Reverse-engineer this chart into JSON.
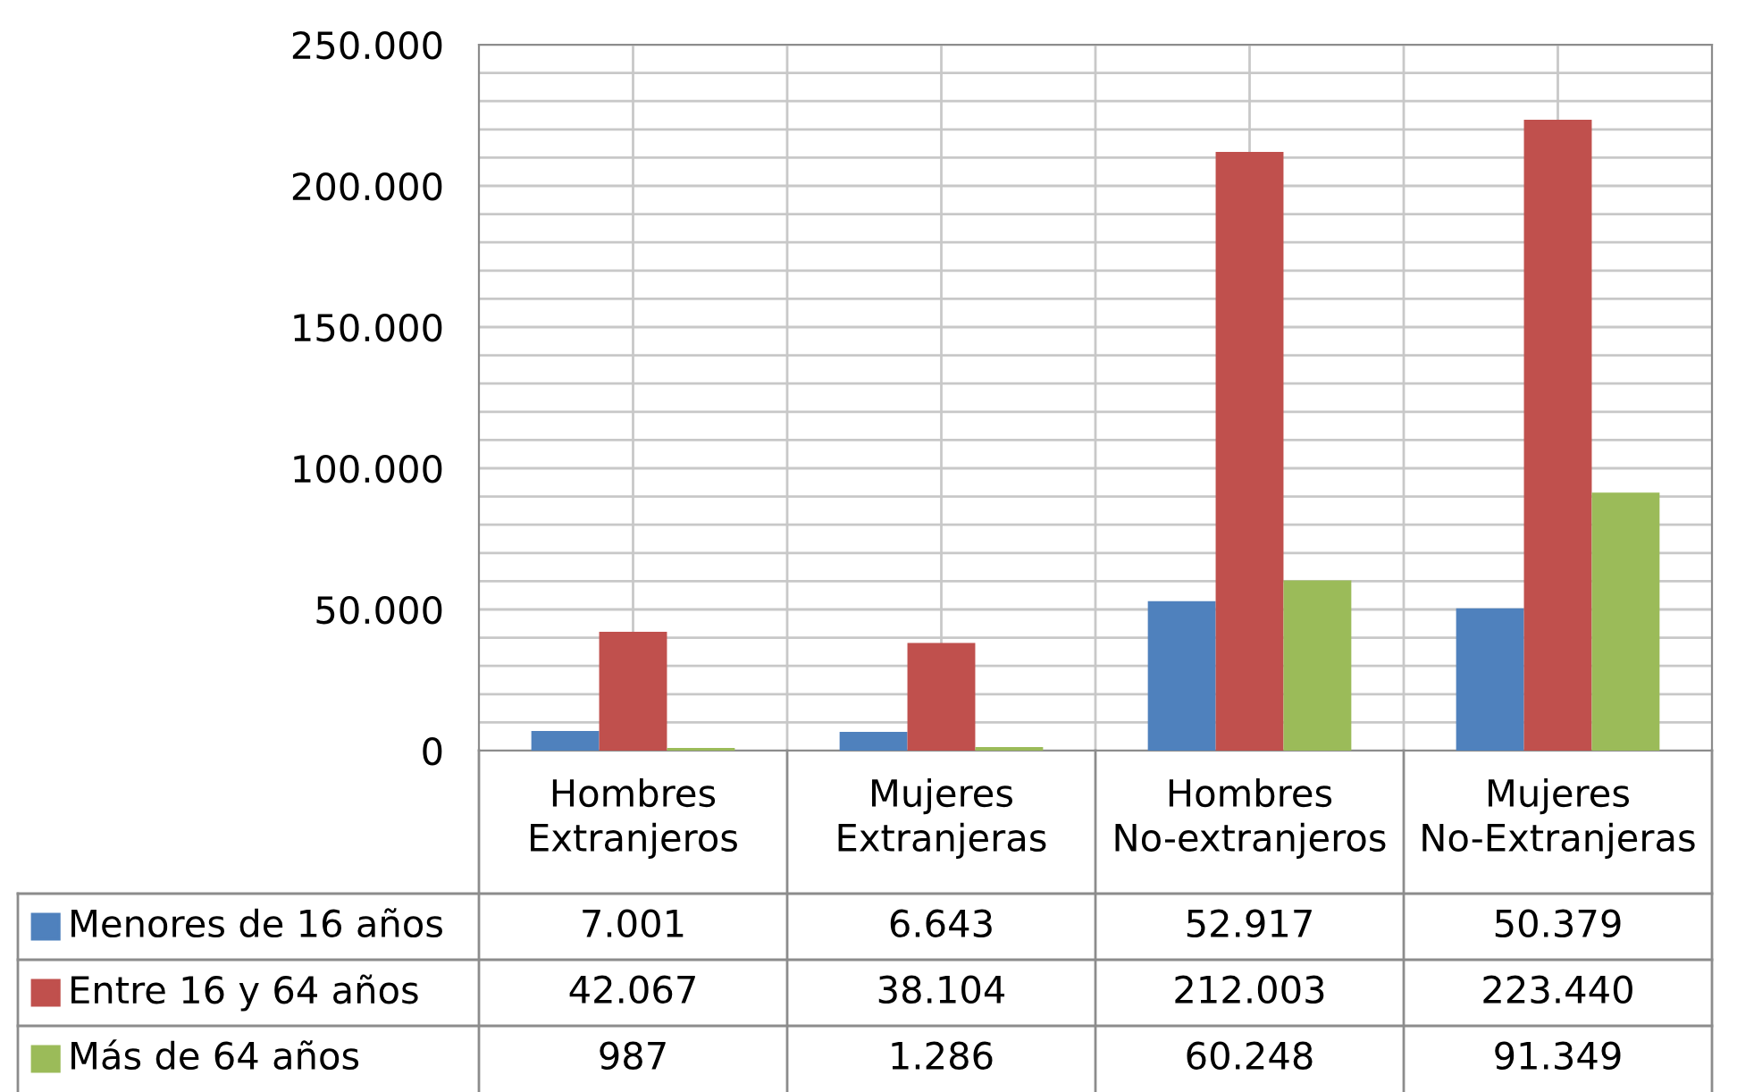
{
  "chart_data": {
    "type": "bar",
    "categories": [
      "Hombres Extranjeros",
      "Mujeres Extranjeras",
      "Hombres No-extranjeros",
      "Mujeres No-Extranjeras"
    ],
    "series": [
      {
        "name": "Menores de 16 años",
        "color": "#4f81bd",
        "values": [
          7001,
          6643,
          52917,
          50379
        ],
        "value_labels": [
          "7.001",
          "6.643",
          "52.917",
          "50.379"
        ]
      },
      {
        "name": "Entre 16 y 64 años",
        "color": "#c0504d",
        "values": [
          42067,
          38104,
          212003,
          223440
        ],
        "value_labels": [
          "42.067",
          "38.104",
          "212.003",
          "223.440"
        ]
      },
      {
        "name": "Más de 64 años",
        "color": "#9bbb59",
        "values": [
          987,
          1286,
          60248,
          91349
        ],
        "value_labels": [
          "987",
          "1.286",
          "60.248",
          "91.349"
        ]
      }
    ],
    "ylim": [
      0,
      250000
    ],
    "yticks": [
      {
        "value": 0,
        "label": "0"
      },
      {
        "value": 50000,
        "label": "50.000"
      },
      {
        "value": 100000,
        "label": "100.000"
      },
      {
        "value": 150000,
        "label": "150.000"
      },
      {
        "value": 200000,
        "label": "200.000"
      },
      {
        "value": 250000,
        "label": "250.000"
      }
    ],
    "grid": true,
    "legend": "bottom"
  }
}
